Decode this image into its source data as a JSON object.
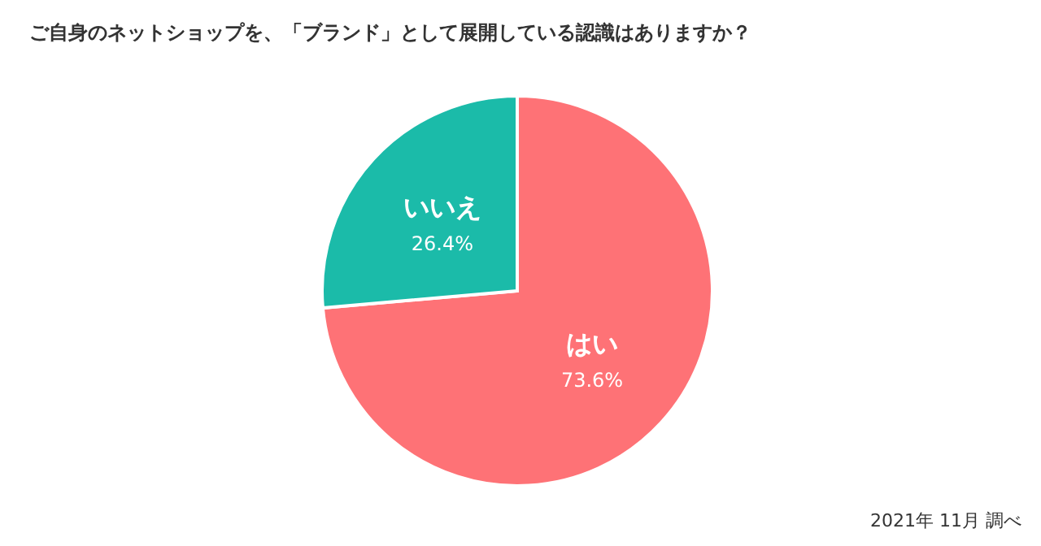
{
  "chart_data": {
    "type": "pie",
    "title": "ご自身のネットショップを、「ブランド」として展開している認識はありますか？",
    "categories": [
      "はい",
      "いいえ"
    ],
    "values": [
      73.6,
      26.4
    ],
    "value_labels": [
      "73.6%",
      "26.4%"
    ],
    "colors": [
      "#fe7276",
      "#1bbba9"
    ],
    "annotations": [
      "2021年 11月 調べ"
    ]
  }
}
